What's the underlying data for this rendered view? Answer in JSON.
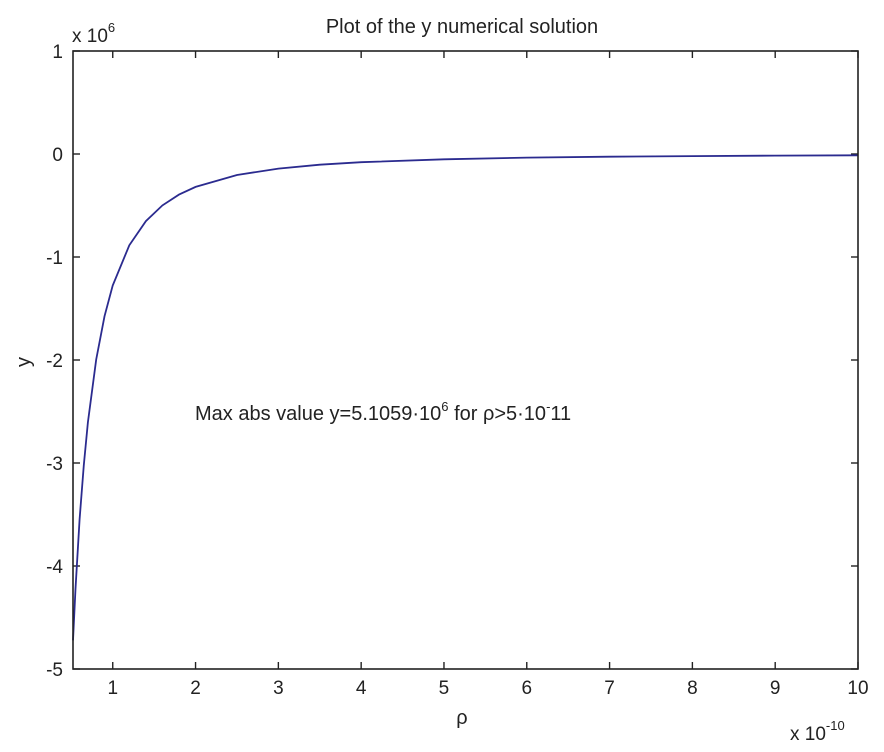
{
  "chart_data": {
    "type": "line",
    "title": "Plot of the y numerical solution",
    "xlabel": "ρ",
    "ylabel": "y",
    "x_multiplier": {
      "base": "x 10",
      "exp": "-10"
    },
    "y_multiplier": {
      "base": "x 10",
      "exp": "6"
    },
    "xlim": [
      0.52,
      10
    ],
    "ylim": [
      -5,
      1
    ],
    "xticks": [
      "1",
      "2",
      "3",
      "4",
      "5",
      "6",
      "7",
      "8",
      "9",
      "10"
    ],
    "yticks": [
      "1",
      "0",
      "-1",
      "-2",
      "-3",
      "-4",
      "-5"
    ],
    "grid": false,
    "line_color": "#2b2b8f",
    "annotation": {
      "pre": "Max abs value y=5.1059·10",
      "exp1": "6",
      "mid": " for ρ>5·10",
      "exp2": "-",
      "post": "11"
    },
    "series": [
      {
        "x": [
          0.52,
          0.55,
          0.6,
          0.65,
          0.7,
          0.8,
          0.9,
          1,
          1.2,
          1.4,
          1.6,
          1.8,
          2,
          2.5,
          3,
          3.5,
          4,
          5,
          6,
          7,
          8,
          9,
          10
        ],
        "y": [
          -4.721,
          -4.22,
          -3.546,
          -3.021,
          -2.605,
          -1.995,
          -1.576,
          -1.277,
          -0.886,
          -0.651,
          -0.499,
          -0.394,
          -0.319,
          -0.204,
          -0.142,
          -0.104,
          -0.08,
          -0.051,
          -0.035,
          -0.026,
          -0.02,
          -0.016,
          -0.013
        ]
      }
    ]
  }
}
